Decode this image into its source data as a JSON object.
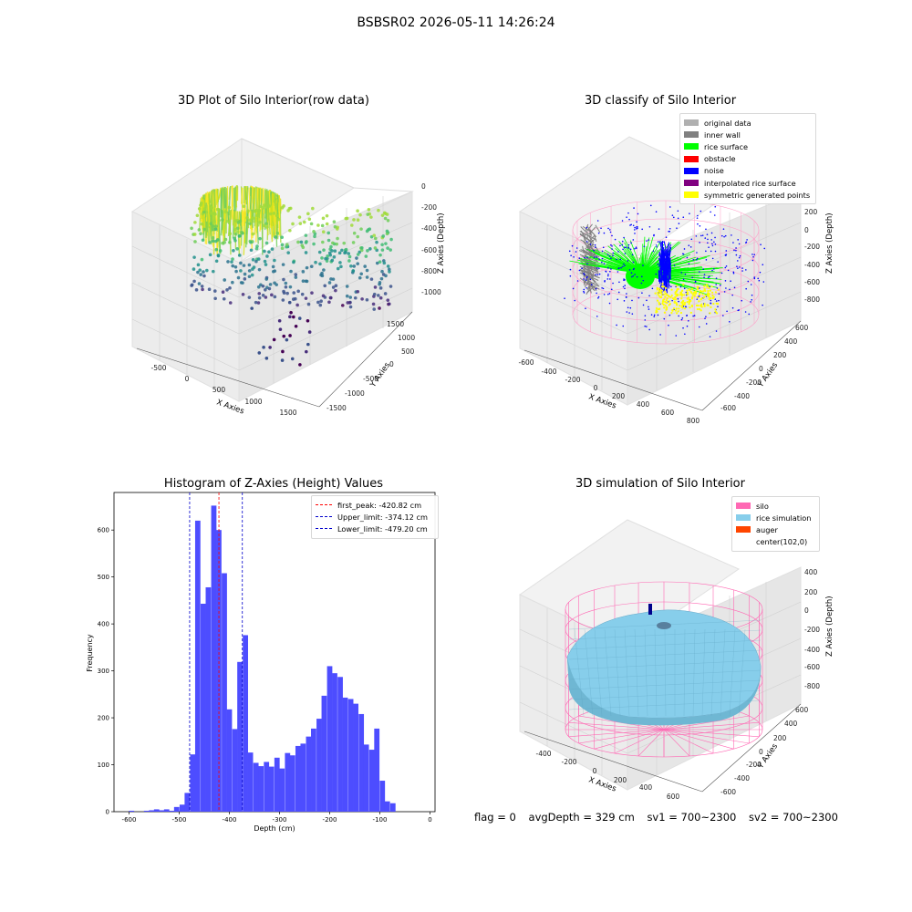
{
  "suptitle": "BSBSR02 2026-05-11 14:26:24",
  "panels": {
    "raw": {
      "title": "3D Plot of Silo Interior(row data)",
      "xlabel": "X Axies",
      "ylabel": "Y Axies",
      "zlabel": "Z Axies (Depth)",
      "xticks": [
        "-500",
        "0",
        "500",
        "1000",
        "1500"
      ],
      "yticks": [
        "1500",
        "1000",
        "500",
        "0",
        "-500",
        "-1000",
        "-1500"
      ],
      "zticks": [
        "0",
        "-200",
        "-400",
        "-600",
        "-800",
        "-1000"
      ]
    },
    "classify": {
      "title": "3D classify of Silo Interior",
      "xlabel": "X Axies",
      "ylabel": "Y Axies",
      "zlabel": "Z Axies (Depth)",
      "xticks": [
        "-600",
        "-400",
        "-200",
        "0",
        "200",
        "400",
        "600",
        "800"
      ],
      "yticks": [
        "600",
        "400",
        "200",
        "0",
        "-200",
        "-400",
        "-600"
      ],
      "zticks": [
        "200",
        "0",
        "-200",
        "-400",
        "-600",
        "-800"
      ],
      "legend": [
        {
          "label": "original data",
          "color": "#b0b0b0"
        },
        {
          "label": "inner wall",
          "color": "#808080"
        },
        {
          "label": "rice surface",
          "color": "#00ff00"
        },
        {
          "label": "obstacle",
          "color": "#ff0000"
        },
        {
          "label": "noise",
          "color": "#0000ff"
        },
        {
          "label": "interpolated rice surface",
          "color": "#800080"
        },
        {
          "label": "symmetric generated points",
          "color": "#ffff00"
        }
      ]
    },
    "histogram": {
      "title": "Histogram of Z-Axies (Height) Values",
      "xlabel": "Depth (cm)",
      "ylabel": "Frequency",
      "legend": [
        {
          "label": "first_peak: -420.82 cm",
          "color": "#ff0000"
        },
        {
          "label": "Upper_limit: -374.12 cm",
          "color": "#0000cc"
        },
        {
          "label": "Lower_limit: -479.20 cm",
          "color": "#0000cc"
        }
      ]
    },
    "simulation": {
      "title": "3D simulation of Silo Interior",
      "xlabel": "X Axies",
      "ylabel": "Y Axies",
      "zlabel": "Z Axies (Depth)",
      "xticks": [
        "-400",
        "-200",
        "0",
        "200",
        "400",
        "600"
      ],
      "yticks": [
        "600",
        "400",
        "200",
        "0",
        "-200",
        "-400",
        "-600"
      ],
      "zticks": [
        "400",
        "200",
        "0",
        "-200",
        "-400",
        "-600",
        "-800"
      ],
      "legend": [
        {
          "label": "silo",
          "color": "#ff69b4"
        },
        {
          "label": "rice simulation",
          "color": "#87ceeb"
        },
        {
          "label": "auger",
          "color": "#ff4500"
        },
        {
          "label": "center(102,0)",
          "color": "#ffffff"
        }
      ]
    }
  },
  "footer": {
    "flag": "flag = 0",
    "avg": "avgDepth = 329 cm",
    "sv1": "sv1 = 700~2300",
    "sv2": "sv2 = 700~2300"
  },
  "chart_data": [
    {
      "type": "scatter",
      "title": "3D Plot of Silo Interior(row data)",
      "xlabel": "X Axies",
      "ylabel": "Y Axies",
      "zlabel": "Z Axies (Depth)",
      "xlim": [
        -800,
        1800
      ],
      "ylim": [
        -1700,
        1700
      ],
      "zlim": [
        -1150,
        50
      ],
      "note": "3D point cloud colored by depth (viridis)"
    },
    {
      "type": "scatter",
      "title": "3D classify of Silo Interior",
      "xlabel": "X Axies",
      "ylabel": "Y Axies",
      "zlabel": "Z Axies (Depth)",
      "xlim": [
        -650,
        850
      ],
      "ylim": [
        -650,
        650
      ],
      "zlim": [
        -900,
        300
      ],
      "series": [
        {
          "name": "original data"
        },
        {
          "name": "inner wall"
        },
        {
          "name": "rice surface"
        },
        {
          "name": "obstacle"
        },
        {
          "name": "noise"
        },
        {
          "name": "interpolated rice surface"
        },
        {
          "name": "symmetric generated points"
        }
      ]
    },
    {
      "type": "bar",
      "title": "Histogram of Z-Axies (Height) Values",
      "xlabel": "Depth (cm)",
      "ylabel": "Frequency",
      "xlim": [
        -630,
        10
      ],
      "ylim": [
        0,
        680
      ],
      "xticks": [
        -600,
        -500,
        -400,
        -300,
        -200,
        -100,
        0
      ],
      "yticks": [
        0,
        100,
        200,
        300,
        400,
        500,
        600
      ],
      "bin_width": 10.5,
      "bins": [
        [
          -595,
          2
        ],
        [
          -585,
          0
        ],
        [
          -575,
          0
        ],
        [
          -565,
          2
        ],
        [
          -555,
          3
        ],
        [
          -545,
          5
        ],
        [
          -535,
          3
        ],
        [
          -525,
          5
        ],
        [
          -515,
          2
        ],
        [
          -505,
          10
        ],
        [
          -494,
          15
        ],
        [
          -484,
          40
        ],
        [
          -473,
          122
        ],
        [
          -463,
          620
        ],
        [
          -452,
          443
        ],
        [
          -442,
          478
        ],
        [
          -431,
          652
        ],
        [
          -421,
          600
        ],
        [
          -410,
          508
        ],
        [
          -400,
          218
        ],
        [
          -389,
          176
        ],
        [
          -379,
          319
        ],
        [
          -368,
          376
        ],
        [
          -358,
          126
        ],
        [
          -347,
          104
        ],
        [
          -337,
          97
        ],
        [
          -326,
          106
        ],
        [
          -316,
          96
        ],
        [
          -305,
          115
        ],
        [
          -295,
          92
        ],
        [
          -284,
          125
        ],
        [
          -274,
          120
        ],
        [
          -263,
          140
        ],
        [
          -253,
          145
        ],
        [
          -242,
          160
        ],
        [
          -232,
          177
        ],
        [
          -221,
          198
        ],
        [
          -211,
          247
        ],
        [
          -200,
          310
        ],
        [
          -190,
          295
        ],
        [
          -179,
          287
        ],
        [
          -169,
          243
        ],
        [
          -158,
          240
        ],
        [
          -148,
          230
        ],
        [
          -137,
          208
        ],
        [
          -127,
          143
        ],
        [
          -116,
          132
        ],
        [
          -106,
          177
        ],
        [
          -95,
          66
        ],
        [
          -85,
          22
        ],
        [
          -74,
          18
        ]
      ],
      "vlines": [
        {
          "label": "first_peak: -420.82 cm",
          "x": -420.82,
          "color": "#ff0000"
        },
        {
          "label": "Upper_limit: -374.12 cm",
          "x": -374.12,
          "color": "#0000cc"
        },
        {
          "label": "Lower_limit: -479.20 cm",
          "x": -479.2,
          "color": "#0000cc"
        }
      ],
      "legend_position": "top-right"
    },
    {
      "type": "area",
      "title": "3D simulation of Silo Interior",
      "xlabel": "X Axies",
      "ylabel": "Y Axies",
      "zlabel": "Z Axies (Depth)",
      "xlim": [
        -500,
        750
      ],
      "ylim": [
        -650,
        650
      ],
      "zlim": [
        -900,
        450
      ],
      "series": [
        {
          "name": "silo"
        },
        {
          "name": "rice simulation"
        },
        {
          "name": "auger"
        },
        {
          "name": "center(102,0)"
        }
      ]
    }
  ]
}
